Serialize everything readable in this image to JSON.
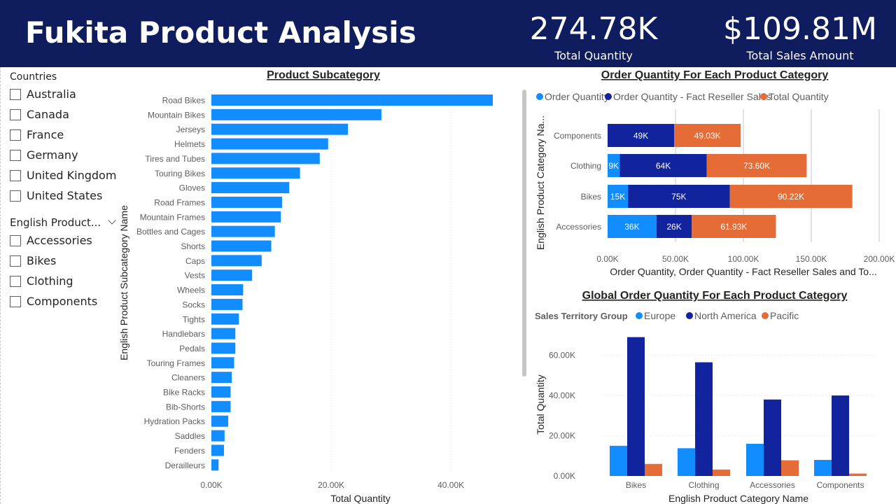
{
  "header": {
    "title": "Fukita Product Analysis",
    "kpis": [
      {
        "value": "274.78K",
        "label": "Total Quantity"
      },
      {
        "value": "$109.81M",
        "label": "Total Sales Amount"
      }
    ]
  },
  "slicers": {
    "countries": {
      "title": "Countries",
      "items": [
        "Australia",
        "Canada",
        "France",
        "Germany",
        "United Kingdom",
        "United States"
      ]
    },
    "categories": {
      "title": "English Product...",
      "items": [
        "Accessories",
        "Bikes",
        "Clothing",
        "Components"
      ]
    }
  },
  "colors": {
    "header": "#0f1c5e",
    "light_blue": "#118dff",
    "dark_blue": "#12239e",
    "orange": "#e66c37"
  },
  "chart_data": [
    {
      "type": "bar",
      "orientation": "horizontal",
      "title": "Product Subcategory",
      "xlabel": "Total Quantity",
      "ylabel": "English Product Subcategory Name",
      "xlim": [
        0,
        47000
      ],
      "xticks": [
        "0.00K",
        "20.00K",
        "40.00K"
      ],
      "tick_values": [
        0,
        20000,
        40000
      ],
      "color": "#118dff",
      "categories": [
        "Road Bikes",
        "Mountain Bikes",
        "Jerseys",
        "Helmets",
        "Tires and Tubes",
        "Touring Bikes",
        "Gloves",
        "Road Frames",
        "Mountain Frames",
        "Bottles and Cages",
        "Shorts",
        "Caps",
        "Vests",
        "Wheels",
        "Socks",
        "Tights",
        "Handlebars",
        "Pedals",
        "Touring Frames",
        "Cleaners",
        "Bike Racks",
        "Bib-Shorts",
        "Hydration Packs",
        "Saddles",
        "Fenders",
        "Derailleurs"
      ],
      "values": [
        47000,
        28400,
        22800,
        19500,
        18100,
        14800,
        13000,
        11800,
        11600,
        10600,
        10000,
        8400,
        6800,
        5300,
        5200,
        4600,
        4000,
        4000,
        3800,
        3400,
        3200,
        3200,
        2800,
        2200,
        2100,
        1200
      ]
    },
    {
      "type": "bar",
      "orientation": "horizontal",
      "stacked": true,
      "title": "Order Quantity For Each Product Category",
      "xlabel": "Order Quantity, Order Quantity - Fact Reseller Sales and To...",
      "ylabel": "English Product Category Na...",
      "xlim": [
        0,
        200000
      ],
      "xticks": [
        "0.00K",
        "50.00K",
        "100.00K",
        "150.00K",
        "200.00K"
      ],
      "tick_values": [
        0,
        50000,
        100000,
        150000,
        200000
      ],
      "legend_position": "top-left",
      "categories": [
        "Components",
        "Clothing",
        "Bikes",
        "Accessories"
      ],
      "series": [
        {
          "name": "Order Quantity",
          "color": "#118dff",
          "values": [
            0,
            9000,
            15000,
            36000
          ],
          "labels": [
            "",
            "9K",
            "15K",
            "36K"
          ]
        },
        {
          "name": "Order Quantity - Fact Reseller Sales",
          "color": "#12239e",
          "values": [
            49000,
            64000,
            75000,
            26000
          ],
          "labels": [
            "49K",
            "64K",
            "75K",
            "26K"
          ]
        },
        {
          "name": "Total Quantity",
          "color": "#e66c37",
          "values": [
            49030,
            73600,
            90220,
            61930
          ],
          "labels": [
            "49.03K",
            "73.60K",
            "90.22K",
            "61.93K"
          ]
        }
      ]
    },
    {
      "type": "bar",
      "orientation": "vertical",
      "title": "Global Order Quantity For Each Product Category",
      "xlabel": "English Product Category Name",
      "ylabel": "Total Quantity",
      "legend_title": "Sales Territory Group",
      "legend_position": "top-left",
      "ylim": [
        0,
        72000
      ],
      "yticks": [
        "0.00K",
        "20.00K",
        "40.00K",
        "60.00K"
      ],
      "tick_values": [
        0,
        20000,
        40000,
        60000
      ],
      "categories": [
        "Bikes",
        "Clothing",
        "Accessories",
        "Components"
      ],
      "series": [
        {
          "name": "Europe",
          "color": "#118dff",
          "values": [
            15000,
            13800,
            16000,
            8000
          ]
        },
        {
          "name": "North America",
          "color": "#12239e",
          "values": [
            69000,
            56500,
            38000,
            40000
          ]
        },
        {
          "name": "Pacific",
          "color": "#e66c37",
          "values": [
            6000,
            3200,
            7800,
            1200
          ]
        }
      ]
    }
  ]
}
